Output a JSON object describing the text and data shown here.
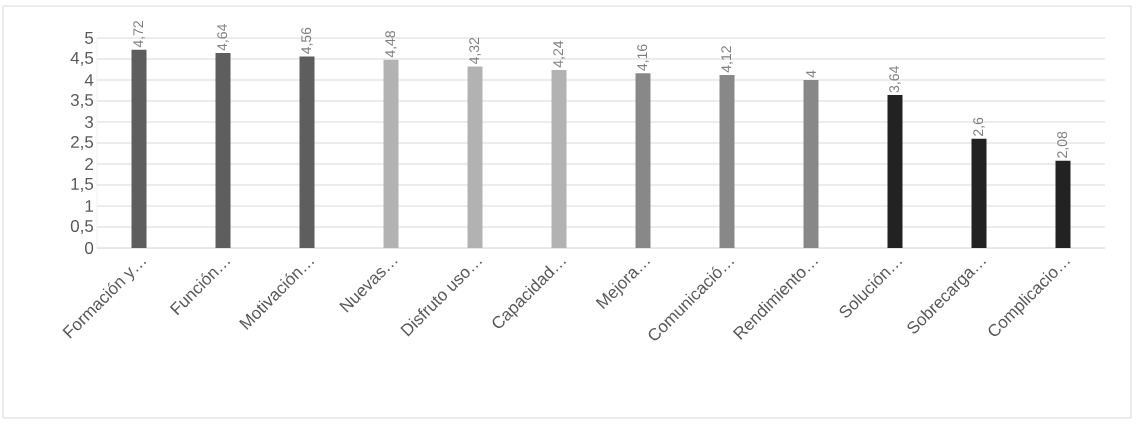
{
  "chart_data": {
    "type": "bar",
    "categories": [
      "Formación y…",
      "Función…",
      "Motivación…",
      "Nuevas…",
      "Disfruto uso…",
      "Capacidad…",
      "Mejora…",
      "Comunicació…",
      "Rendimiento…",
      "Solución…",
      "Sobrecarga…",
      "Complicacio…"
    ],
    "values": [
      4.72,
      4.64,
      4.56,
      4.48,
      4.32,
      4.24,
      4.16,
      4.12,
      4,
      3.64,
      2.6,
      2.08
    ],
    "value_labels": [
      "4,72",
      "4,64",
      "4,56",
      "4,48",
      "4,32",
      "4,24",
      "4,16",
      "4,12",
      "4",
      "3,64",
      "2,6",
      "2,08"
    ],
    "colors": [
      "#5e5e5e",
      "#5e5e5e",
      "#5e5e5e",
      "#b2b2b2",
      "#b2b2b2",
      "#b2b2b2",
      "#888888",
      "#888888",
      "#888888",
      "#222222",
      "#222222",
      "#222222"
    ],
    "ylim": [
      0,
      5
    ],
    "yticks": [
      0,
      {
        "value": 0.5,
        "label": "0,5"
      },
      1,
      {
        "value": 1.5,
        "label": "1,5"
      },
      2,
      {
        "value": 2.5,
        "label": "2,5"
      },
      3,
      {
        "value": 3.5,
        "label": "3,5"
      },
      4,
      {
        "value": 4.5,
        "label": "4,5"
      },
      5
    ],
    "grid": "y"
  }
}
